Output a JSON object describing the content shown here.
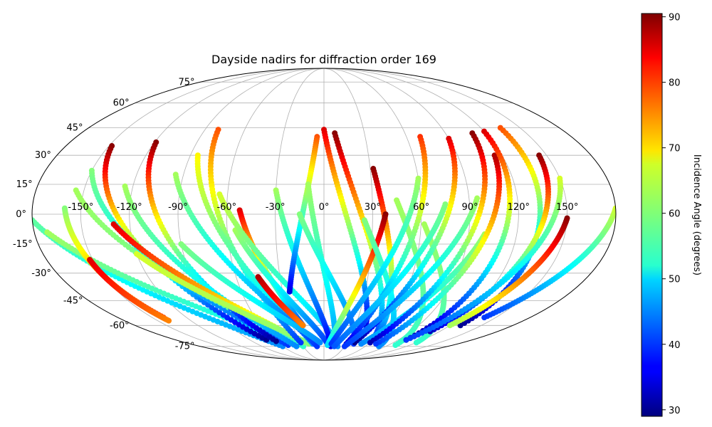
{
  "chart_data": {
    "type": "scatter",
    "projection": "mollweide",
    "title": "Dayside nadirs for diffraction order 169",
    "lon_ticks": [
      "-150°",
      "-120°",
      "-90°",
      "-60°",
      "-30°",
      "0°",
      "30°",
      "60°",
      "90°",
      "120°",
      "150°"
    ],
    "lon_tick_values": [
      -150,
      -120,
      -90,
      -60,
      -30,
      0,
      30,
      60,
      90,
      120,
      150
    ],
    "lat_ticks": [
      "-75°",
      "-60°",
      "-45°",
      "-30°",
      "-15°",
      "0°",
      "15°",
      "30°",
      "45°",
      "60°",
      "75°"
    ],
    "lat_tick_values": [
      -75,
      -60,
      -45,
      -30,
      -15,
      0,
      15,
      30,
      45,
      60,
      75
    ],
    "grid": true,
    "colorbar": {
      "label": "Incidence Angle (degrees)",
      "range": [
        29,
        90.5
      ],
      "ticks": [
        "30",
        "40",
        "50",
        "60",
        "70",
        "80",
        "90"
      ],
      "tick_values": [
        30,
        40,
        50,
        60,
        70,
        80,
        90
      ],
      "colormap": "jet"
    },
    "tracks": [
      {
        "lon_start": -180,
        "lat_start": -3,
        "lon_end": -60,
        "lat_end": -75,
        "inc_start": 58,
        "inc_end": 45
      },
      {
        "lon_start": -172,
        "lat_start": -9,
        "lon_end": -40,
        "lat_end": -73,
        "inc_start": 62,
        "inc_end": 50
      },
      {
        "lon_start": -148,
        "lat_start": 35,
        "lon_end": -70,
        "lat_end": -70,
        "inc_start": 90,
        "inc_end": 30
      },
      {
        "lon_start": -150,
        "lat_start": 22,
        "lon_end": -50,
        "lat_end": -74,
        "inc_start": 60,
        "inc_end": 40
      },
      {
        "lon_start": -155,
        "lat_start": 12,
        "lon_end": -30,
        "lat_end": -75,
        "inc_start": 62,
        "inc_end": 55
      },
      {
        "lon_start": -160,
        "lat_start": 3,
        "lon_end": -140,
        "lat_end": -55,
        "inc_start": 60,
        "inc_end": 80
      },
      {
        "lon_start": -152,
        "lat_start": -23,
        "lon_end": -140,
        "lat_end": -57,
        "inc_start": 85,
        "inc_end": 75
      },
      {
        "lon_start": -119,
        "lat_start": 37,
        "lon_end": -60,
        "lat_end": -71,
        "inc_start": 90,
        "inc_end": 30
      },
      {
        "lon_start": -125,
        "lat_start": 14,
        "lon_end": -40,
        "lat_end": -75,
        "inc_start": 62,
        "inc_end": 45
      },
      {
        "lon_start": -130,
        "lat_start": -5,
        "lon_end": -25,
        "lat_end": -72,
        "inc_start": 85,
        "inc_end": 60
      },
      {
        "lon_start": -120,
        "lat_start": -20,
        "lon_end": -20,
        "lat_end": -73,
        "inc_start": 65,
        "inc_end": 60
      },
      {
        "lon_start": -80,
        "lat_start": 44,
        "lon_end": -30,
        "lat_end": -72,
        "inc_start": 78,
        "inc_end": 40
      },
      {
        "lon_start": -85,
        "lat_start": 30,
        "lon_end": -15,
        "lat_end": -73,
        "inc_start": 68,
        "inc_end": 45
      },
      {
        "lon_start": -95,
        "lat_start": 20,
        "lon_end": -10,
        "lat_end": -75,
        "inc_start": 62,
        "inc_end": 40
      },
      {
        "lon_start": -90,
        "lat_start": -15,
        "lon_end": -5,
        "lat_end": -72,
        "inc_start": 60,
        "inc_end": 45
      },
      {
        "lon_start": -52,
        "lat_start": 2,
        "lon_end": -20,
        "lat_end": -60,
        "inc_start": 85,
        "inc_end": 40
      },
      {
        "lon_start": -55,
        "lat_start": -8,
        "lon_end": 5,
        "lat_end": -73,
        "inc_start": 62,
        "inc_end": 40
      },
      {
        "lon_start": -65,
        "lat_start": 10,
        "lon_end": 20,
        "lat_end": -75,
        "inc_start": 65,
        "inc_end": 45
      },
      {
        "lon_start": -45,
        "lat_start": -32,
        "lon_end": -20,
        "lat_end": -60,
        "inc_start": 88,
        "inc_end": 75
      },
      {
        "lon_start": -30,
        "lat_start": 12,
        "lon_end": 10,
        "lat_end": -75,
        "inc_start": 62,
        "inc_end": 35
      },
      {
        "lon_start": -5,
        "lat_start": 40,
        "lon_end": -25,
        "lat_end": -40,
        "inc_start": 78,
        "inc_end": 35
      },
      {
        "lon_start": -10,
        "lat_start": 15,
        "lon_end": 15,
        "lat_end": -74,
        "inc_start": 62,
        "inc_end": 45
      },
      {
        "lon_start": -15,
        "lat_start": 0,
        "lon_end": 40,
        "lat_end": -73,
        "inc_start": 60,
        "inc_end": 40
      },
      {
        "lon_start": 0,
        "lat_start": 44,
        "lon_end": 40,
        "lat_end": -60,
        "inc_start": 85,
        "inc_end": 35
      },
      {
        "lon_start": 8,
        "lat_start": 42,
        "lon_end": 60,
        "lat_end": -72,
        "inc_start": 90,
        "inc_end": 38
      },
      {
        "lon_start": 32,
        "lat_start": 23,
        "lon_end": 60,
        "lat_end": -70,
        "inc_start": 90,
        "inc_end": 40
      },
      {
        "lon_start": 38,
        "lat_start": 0,
        "lon_end": 5,
        "lat_end": -74,
        "inc_start": 90,
        "inc_end": 50
      },
      {
        "lon_start": 25,
        "lat_start": -3,
        "lon_end": 80,
        "lat_end": -75,
        "inc_start": 60,
        "inc_end": 45
      },
      {
        "lon_start": 45,
        "lat_start": 7,
        "lon_end": 100,
        "lat_end": -74,
        "inc_start": 62,
        "inc_end": 55
      },
      {
        "lon_start": 60,
        "lat_start": 18,
        "lon_end": 10,
        "lat_end": -73,
        "inc_start": 62,
        "inc_end": 40
      },
      {
        "lon_start": 62,
        "lat_start": -5,
        "lon_end": 120,
        "lat_end": -72,
        "inc_start": 62,
        "inc_end": 55
      },
      {
        "lon_start": 70,
        "lat_start": 40,
        "lon_end": 30,
        "lat_end": -73,
        "inc_start": 80,
        "inc_end": 35
      },
      {
        "lon_start": 75,
        "lat_start": 5,
        "lon_end": 15,
        "lat_end": -75,
        "inc_start": 60,
        "inc_end": 42
      },
      {
        "lon_start": 90,
        "lat_start": 39,
        "lon_end": 40,
        "lat_end": -72,
        "inc_start": 85,
        "inc_end": 30
      },
      {
        "lon_start": 95,
        "lat_start": 8,
        "lon_end": 30,
        "lat_end": -75,
        "inc_start": 62,
        "inc_end": 40
      },
      {
        "lon_start": 100,
        "lat_start": -10,
        "lon_end": 50,
        "lat_end": -73,
        "inc_start": 62,
        "inc_end": 45
      },
      {
        "lon_start": 110,
        "lat_start": 42,
        "lon_end": 60,
        "lat_end": -72,
        "inc_start": 90,
        "inc_end": 32
      },
      {
        "lon_start": 115,
        "lat_start": 30,
        "lon_end": 70,
        "lat_end": -73,
        "inc_start": 88,
        "inc_end": 40
      },
      {
        "lon_start": 120,
        "lat_start": 43,
        "lon_end": 100,
        "lat_end": -70,
        "inc_start": 85,
        "inc_end": 30
      },
      {
        "lon_start": 135,
        "lat_start": 45,
        "lon_end": 130,
        "lat_end": -60,
        "inc_start": 78,
        "inc_end": 30
      },
      {
        "lon_start": 145,
        "lat_start": 30,
        "lon_end": 110,
        "lat_end": -64,
        "inc_start": 90,
        "inc_end": 33
      },
      {
        "lon_start": 150,
        "lat_start": -2,
        "lon_end": 120,
        "lat_end": -60,
        "inc_start": 90,
        "inc_end": 62
      },
      {
        "lon_start": 150,
        "lat_start": 18,
        "lon_end": 100,
        "lat_end": -70,
        "inc_start": 65,
        "inc_end": 40
      },
      {
        "lon_start": 180,
        "lat_start": 3,
        "lon_end": 140,
        "lat_end": -55,
        "inc_start": 65,
        "inc_end": 40
      }
    ]
  }
}
